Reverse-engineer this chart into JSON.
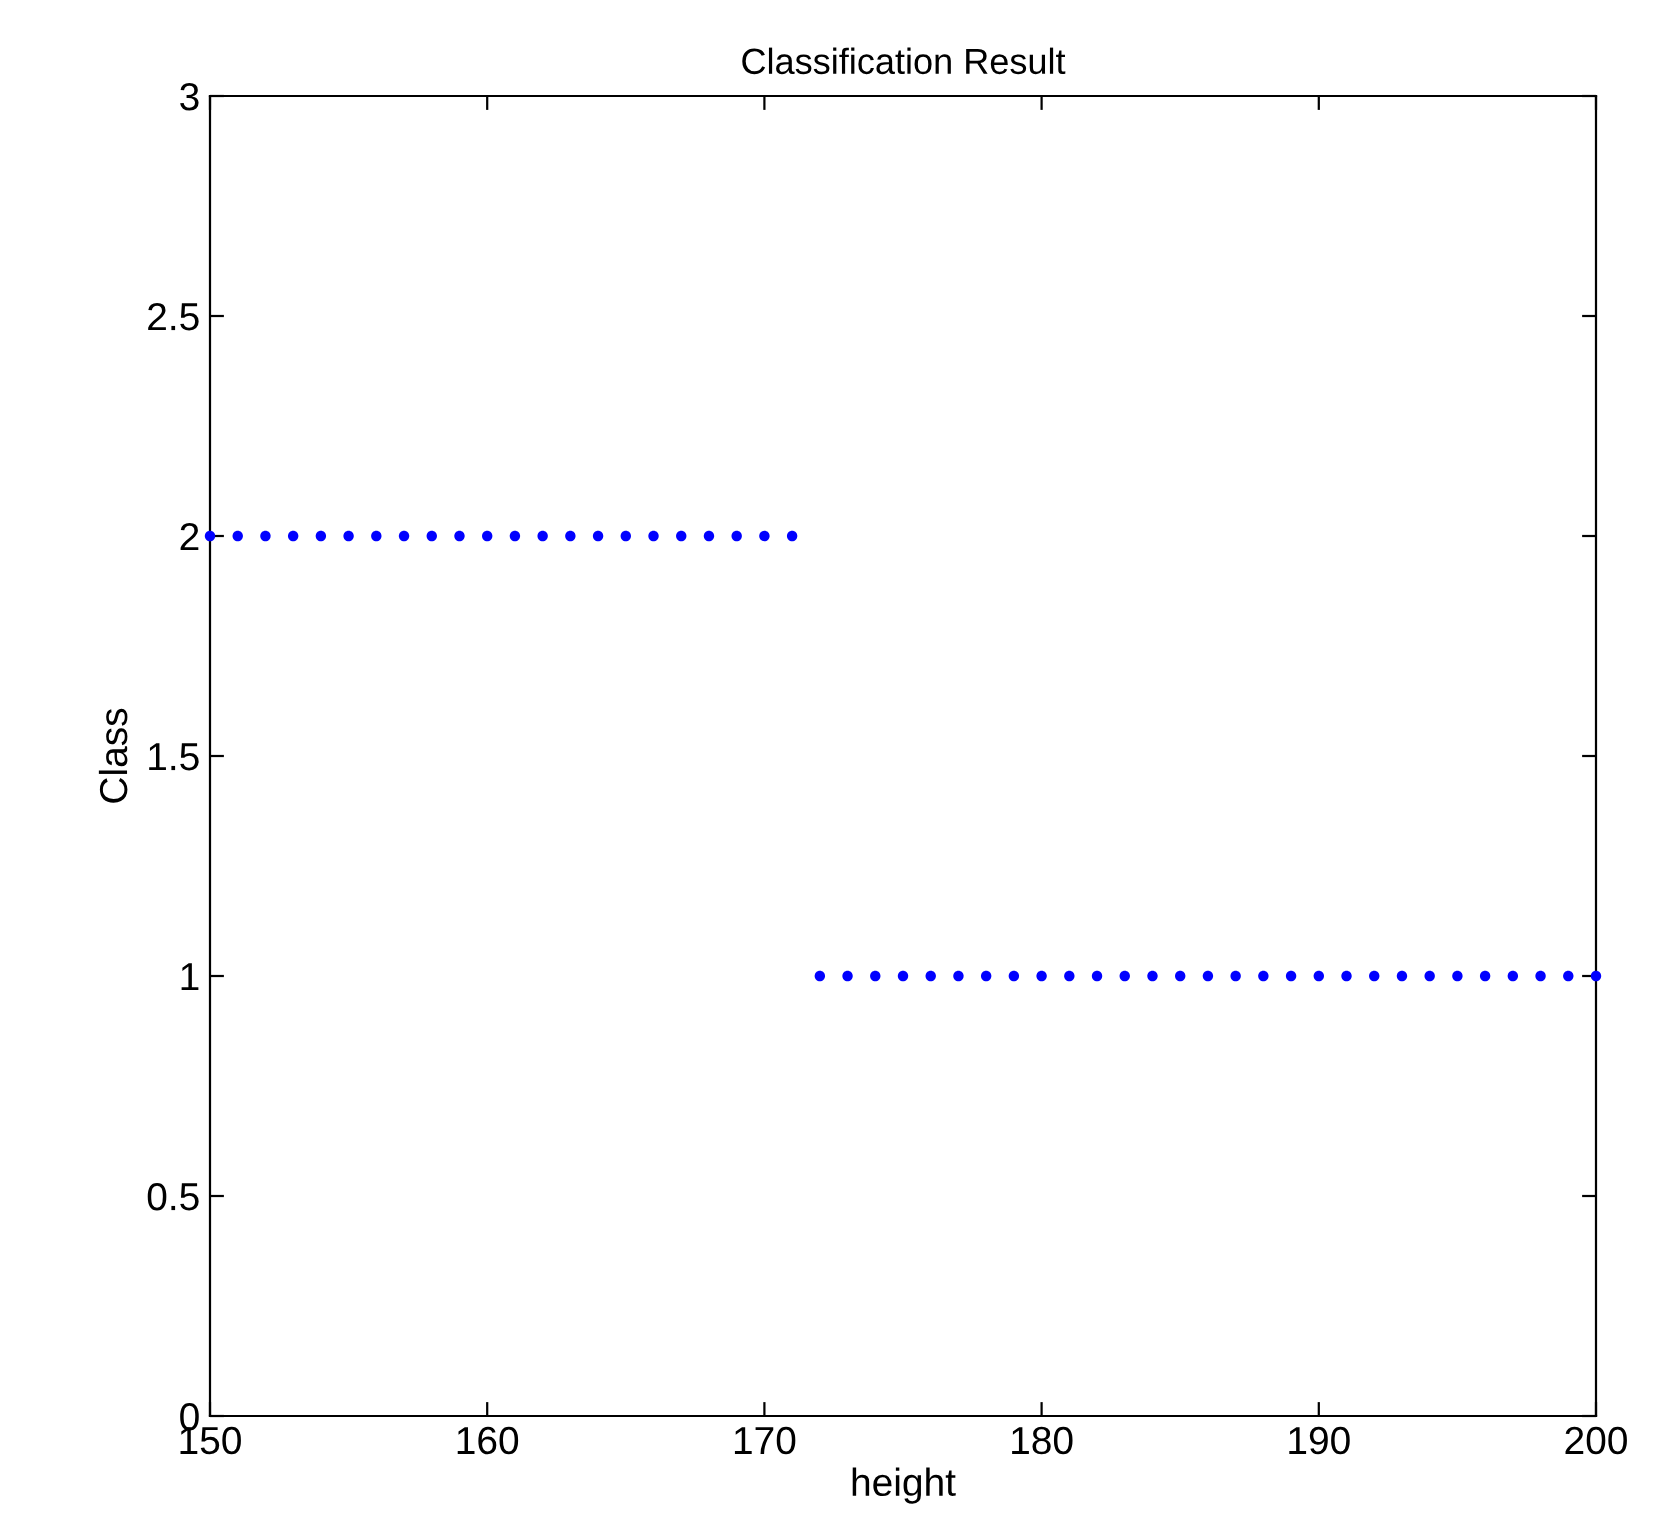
{
  "chart_data": {
    "type": "scatter",
    "title": "Classification Result",
    "xlabel": "height",
    "ylabel": "Class",
    "x": [
      150,
      151,
      152,
      153,
      154,
      155,
      156,
      157,
      158,
      159,
      160,
      161,
      162,
      163,
      164,
      165,
      166,
      167,
      168,
      169,
      170,
      171,
      172,
      173,
      174,
      175,
      176,
      177,
      178,
      179,
      180,
      181,
      182,
      183,
      184,
      185,
      186,
      187,
      188,
      189,
      190,
      191,
      192,
      193,
      194,
      195,
      196,
      197,
      198,
      199,
      200
    ],
    "series": [
      {
        "color": "#0000ff",
        "values": [
          2,
          2,
          2,
          2,
          2,
          2,
          2,
          2,
          2,
          2,
          2,
          2,
          2,
          2,
          2,
          2,
          2,
          2,
          2,
          2,
          2,
          2,
          1,
          1,
          1,
          1,
          1,
          1,
          1,
          1,
          1,
          1,
          1,
          1,
          1,
          1,
          1,
          1,
          1,
          1,
          1,
          1,
          1,
          1,
          1,
          1,
          1,
          1,
          1,
          1,
          1
        ]
      }
    ],
    "xlim": [
      150,
      200
    ],
    "ylim": [
      0,
      3
    ],
    "xticks": [
      150,
      160,
      170,
      180,
      190,
      200
    ],
    "yticks": [
      0,
      0.5,
      1,
      1.5,
      2,
      2.5,
      3
    ],
    "marker": "circle",
    "grid": false,
    "legend": false
  }
}
